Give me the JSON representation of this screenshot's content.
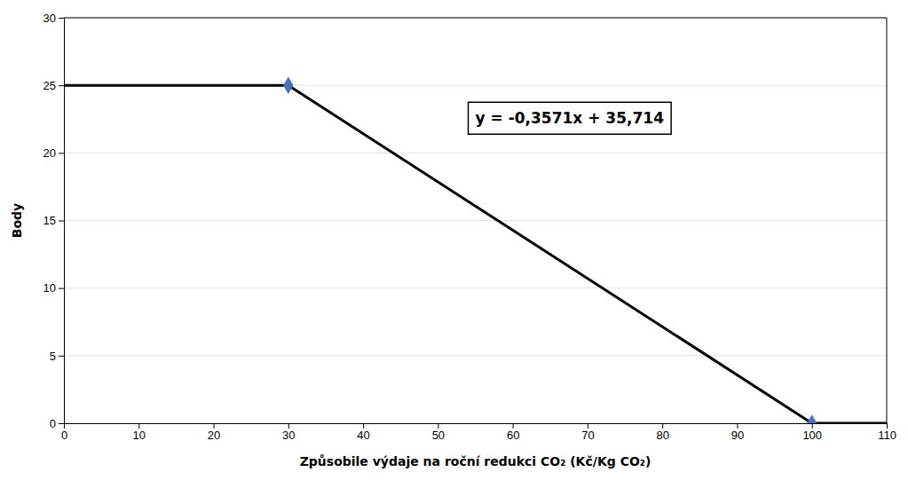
{
  "chart_data": {
    "type": "line",
    "xlabel": "Způsobile výdaje na roční redukci CO₂ (Kč/Kg CO₂)",
    "ylabel": "Body",
    "xlim": [
      0,
      110
    ],
    "ylim": [
      0,
      30
    ],
    "xticks": [
      0,
      10,
      20,
      30,
      40,
      50,
      60,
      70,
      80,
      90,
      100,
      110
    ],
    "yticks": [
      0,
      5,
      10,
      15,
      20,
      25,
      30
    ],
    "grid": true,
    "series": [
      {
        "type": "line",
        "color": "#000000",
        "x": [
          0,
          30,
          100,
          110
        ],
        "values": [
          25,
          25,
          0,
          0
        ]
      },
      {
        "type": "scatter",
        "color": "#4472c4",
        "marker": "diamond",
        "x": [
          30,
          100
        ],
        "values": [
          25,
          0
        ]
      }
    ],
    "annotations": [
      {
        "text": "y = -0,3571x + 35,714",
        "x": 55,
        "y": 22.5
      }
    ]
  }
}
